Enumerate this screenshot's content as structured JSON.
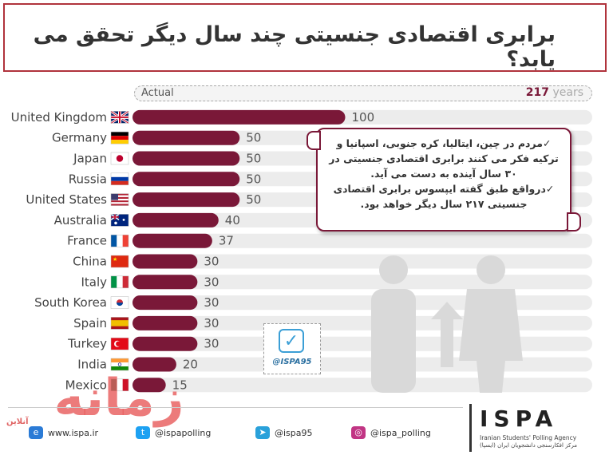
{
  "title": "برابری اقتصادی جنسیتی چند سال دیگر تحقق می یابد؟",
  "actual": {
    "label": "Actual",
    "years_value": "217",
    "years_unit": "years"
  },
  "chart_data": {
    "type": "bar",
    "orientation": "horizontal",
    "categories": [
      "United Kingdom",
      "Germany",
      "Japan",
      "Russia",
      "United States",
      "Australia",
      "France",
      "China",
      "Italy",
      "South Korea",
      "Spain",
      "Turkey",
      "India",
      "Mexico"
    ],
    "values": [
      100,
      50,
      50,
      50,
      50,
      40,
      37,
      30,
      30,
      30,
      30,
      30,
      20,
      15
    ],
    "xlim": [
      0,
      217
    ],
    "bar_color": "#7a1838",
    "track_color": "#ececec",
    "flags": [
      "uk",
      "de",
      "jp",
      "ru",
      "us",
      "au",
      "fr",
      "cn",
      "it",
      "kr",
      "es",
      "tr",
      "in",
      "mx"
    ]
  },
  "callout": {
    "line1": "✓مردم در چین، ایتالیا، کره جنوبی، اسپانیا و ترکیه فکر می کنند برابری اقتصادی جنسیتی در ۳۰ سال آینده به دست می آید.",
    "line2": "✓درواقع طبق گفته ایپسوس برابری اقتصادی جنسیتی ۲۱۷ سال دیگر خواهد بود."
  },
  "stamp": {
    "handle": "@ISPA95"
  },
  "watermark": {
    "text": "زمانه",
    "sub": "آنلاین"
  },
  "footer": {
    "website": "www.ispa.ir",
    "twitter": "@ispapolling",
    "telegram": "@ispa95",
    "instagram": "@ispa_polling",
    "logo": "ISPA",
    "agency_en": "Iranian Students' Polling Agency",
    "agency_fa": "مرکز افکارسنجی دانشجویان ایران (ایسپا)"
  }
}
